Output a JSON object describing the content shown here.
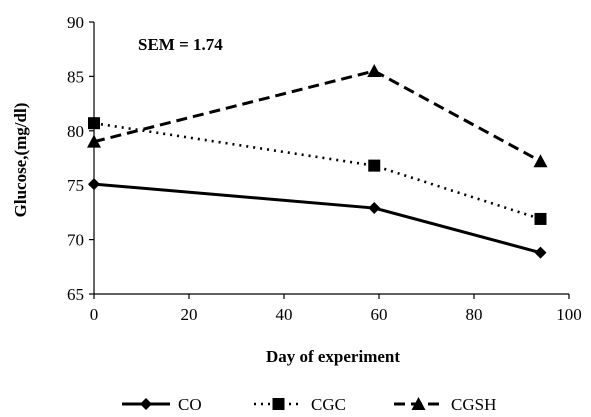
{
  "chart_data": {
    "type": "line",
    "xlabel": "Day of experiment",
    "ylabel": "Glucose,(mg/dl)",
    "annotation": "SEM = 1.74",
    "xlim": [
      0,
      100
    ],
    "ylim": [
      65,
      90
    ],
    "x_ticks": [
      0,
      20,
      40,
      60,
      80,
      100
    ],
    "y_ticks": [
      65,
      70,
      75,
      80,
      85,
      90
    ],
    "grid": false,
    "legend_position": "bottom",
    "series": [
      {
        "name": "CO",
        "x": [
          0,
          59,
          94
        ],
        "y": [
          75.1,
          72.9,
          68.8
        ],
        "marker": "diamond",
        "dash": "solid",
        "color": "#000000"
      },
      {
        "name": "CGC",
        "x": [
          0,
          59,
          94
        ],
        "y": [
          80.7,
          76.8,
          71.9
        ],
        "marker": "square",
        "dash": "dotted",
        "color": "#000000"
      },
      {
        "name": "CGSH",
        "x": [
          0,
          59,
          94
        ],
        "y": [
          79.0,
          85.5,
          77.2
        ],
        "marker": "triangle",
        "dash": "dashed",
        "color": "#000000"
      }
    ]
  }
}
